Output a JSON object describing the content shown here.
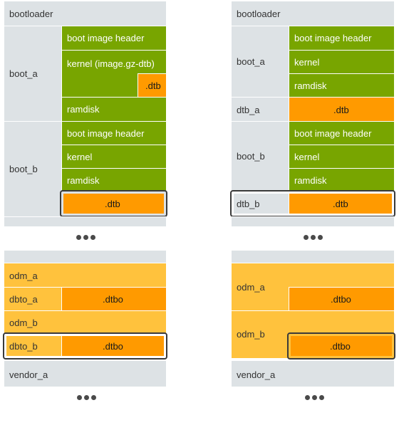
{
  "colors": {
    "partition_gray": "#dde2e5",
    "boot_green": "#78a500",
    "dtb_orange": "#ff9a00",
    "odm_yellow": "#ffc23d",
    "highlight_border": "#3a3a3a"
  },
  "top_left": {
    "bootloader": "bootloader",
    "boot_a": {
      "label": "boot_a",
      "header": "boot image header",
      "kernel": "kernel (image.gz-dtb)",
      "dtb": ".dtb",
      "ramdisk": "ramdisk"
    },
    "boot_b": {
      "label": "boot_b",
      "header": "boot image header",
      "kernel": "kernel",
      "ramdisk": "ramdisk",
      "dtb": ".dtb"
    },
    "ellipsis": "•••"
  },
  "top_right": {
    "bootloader": "bootloader",
    "boot_a": {
      "label": "boot_a",
      "header": "boot image header",
      "kernel": "kernel",
      "ramdisk": "ramdisk"
    },
    "dtb_a": {
      "label": "dtb_a",
      "dtb": ".dtb"
    },
    "boot_b": {
      "label": "boot_b",
      "header": "boot image header",
      "kernel": "kernel",
      "ramdisk": "ramdisk"
    },
    "dtb_b": {
      "label": "dtb_b",
      "dtb": ".dtb"
    },
    "ellipsis": "•••"
  },
  "bottom_left": {
    "odm_a": "odm_a",
    "dbto_a": {
      "label": "dbto_a",
      "dtbo": ".dtbo"
    },
    "odm_b": "odm_b",
    "dbto_b": {
      "label": "dbto_b",
      "dtbo": ".dtbo"
    },
    "vendor_a": "vendor_a",
    "ellipsis": "•••"
  },
  "bottom_right": {
    "odm_a": {
      "label": "odm_a",
      "dtbo": ".dtbo"
    },
    "odm_b": {
      "label": "odm_b",
      "dtbo": ".dtbo"
    },
    "vendor_a": "vendor_a",
    "ellipsis": "•••"
  }
}
